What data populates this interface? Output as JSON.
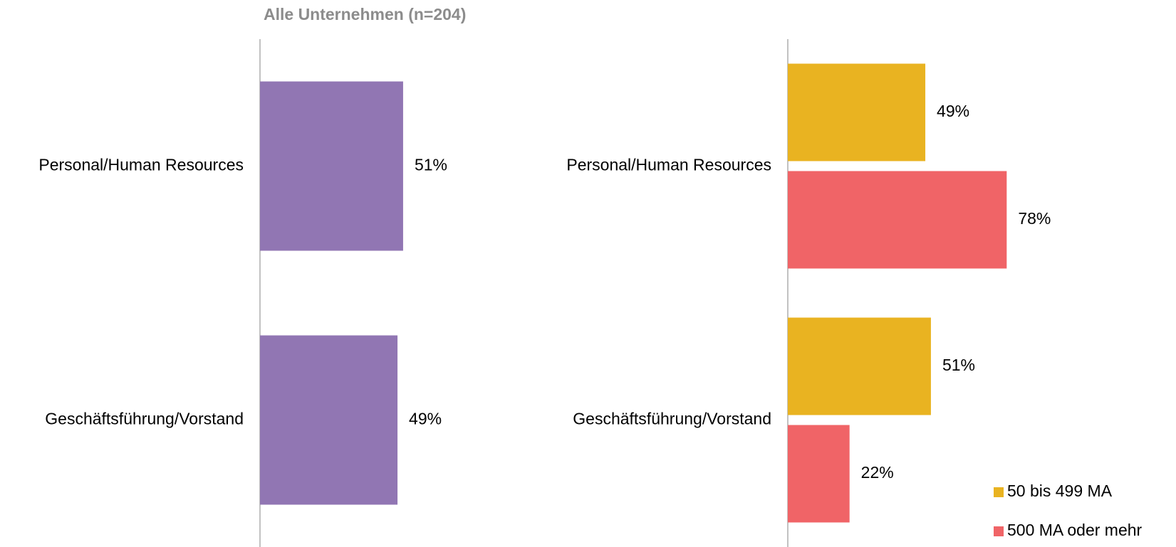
{
  "chart_data": [
    {
      "type": "bar",
      "orientation": "horizontal",
      "title": "Alle Unternehmen (n=204)",
      "categories": [
        "Personal/Human Resources",
        "Geschäftsführung/Vorstand"
      ],
      "values": [
        51,
        49
      ],
      "value_labels": [
        "51%",
        "49%"
      ],
      "color": "#9176b3",
      "xlim": [
        0,
        100
      ]
    },
    {
      "type": "bar",
      "orientation": "horizontal",
      "categories": [
        "Personal/Human Resources",
        "Geschäftsführung/Vorstand"
      ],
      "series": [
        {
          "name": "50 bis 499 MA",
          "color": "#e9b321",
          "values": [
            49,
            51
          ],
          "value_labels": [
            "49%",
            "51%"
          ]
        },
        {
          "name": "500 MA oder mehr",
          "color": "#f06467",
          "values": [
            78,
            22
          ],
          "value_labels": [
            "78%",
            "22%"
          ]
        }
      ],
      "xlim": [
        0,
        100
      ],
      "legend": "lower right"
    }
  ]
}
